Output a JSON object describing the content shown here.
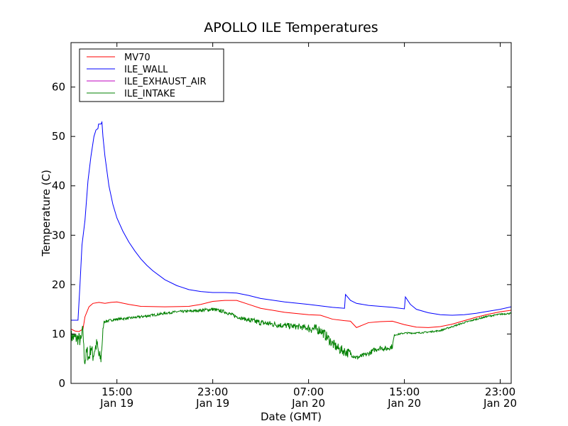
{
  "chart_data": {
    "type": "line",
    "title": "APOLLO ILE Temperatures",
    "xlabel": "Date (GMT)",
    "ylabel": "Temperature (C)",
    "xlim": [
      "2011-01-19 11:10",
      "2011-01-20 23:55"
    ],
    "ylim": [
      0,
      69
    ],
    "grid": false,
    "legend_position": "top-left",
    "x_ticks": [
      {
        "time": "2011-01-19 15:00",
        "label_time": "15:00",
        "label_date": "Jan 19"
      },
      {
        "time": "2011-01-19 23:00",
        "label_time": "23:00",
        "label_date": "Jan 19"
      },
      {
        "time": "2011-01-20 07:00",
        "label_time": "07:00",
        "label_date": "Jan 20"
      },
      {
        "time": "2011-01-20 15:00",
        "label_time": "15:00",
        "label_date": "Jan 20"
      },
      {
        "time": "2011-01-20 23:00",
        "label_time": "23:00",
        "label_date": "Jan 20"
      }
    ],
    "y_ticks": [
      0,
      10,
      20,
      30,
      40,
      50,
      60
    ],
    "series": [
      {
        "name": "MV70",
        "color": "#ff0000",
        "points": [
          [
            "2011-01-19 11:10",
            11.0
          ],
          [
            "2011-01-19 11:30",
            10.6
          ],
          [
            "2011-01-19 11:50",
            10.5
          ],
          [
            "2011-01-19 12:10",
            11.0
          ],
          [
            "2011-01-19 12:20",
            13.5
          ],
          [
            "2011-01-19 12:40",
            15.5
          ],
          [
            "2011-01-19 13:00",
            16.2
          ],
          [
            "2011-01-19 13:30",
            16.4
          ],
          [
            "2011-01-19 14:00",
            16.2
          ],
          [
            "2011-01-19 14:30",
            16.4
          ],
          [
            "2011-01-19 15:00",
            16.5
          ],
          [
            "2011-01-19 16:00",
            16.0
          ],
          [
            "2011-01-19 17:00",
            15.6
          ],
          [
            "2011-01-19 19:00",
            15.5
          ],
          [
            "2011-01-19 21:00",
            15.6
          ],
          [
            "2011-01-19 22:00",
            16.0
          ],
          [
            "2011-01-19 23:00",
            16.6
          ],
          [
            "2011-01-20 00:00",
            16.8
          ],
          [
            "2011-01-20 01:00",
            16.8
          ],
          [
            "2011-01-20 02:00",
            16.0
          ],
          [
            "2011-01-20 03:00",
            15.2
          ],
          [
            "2011-01-20 05:00",
            14.4
          ],
          [
            "2011-01-20 07:00",
            13.9
          ],
          [
            "2011-01-20 08:00",
            13.8
          ],
          [
            "2011-01-20 09:00",
            13.0
          ],
          [
            "2011-01-20 10:00",
            12.7
          ],
          [
            "2011-01-20 10:30",
            12.6
          ],
          [
            "2011-01-20 11:00",
            11.3
          ],
          [
            "2011-01-20 11:30",
            11.8
          ],
          [
            "2011-01-20 12:00",
            12.3
          ],
          [
            "2011-01-20 13:00",
            12.5
          ],
          [
            "2011-01-20 14:00",
            12.6
          ],
          [
            "2011-01-20 15:00",
            11.9
          ],
          [
            "2011-01-20 16:00",
            11.4
          ],
          [
            "2011-01-20 17:00",
            11.3
          ],
          [
            "2011-01-20 18:00",
            11.5
          ],
          [
            "2011-01-20 19:00",
            12.0
          ],
          [
            "2011-01-20 20:00",
            12.7
          ],
          [
            "2011-01-20 21:00",
            13.4
          ],
          [
            "2011-01-20 22:00",
            14.0
          ],
          [
            "2011-01-20 23:00",
            14.5
          ],
          [
            "2011-01-20 23:55",
            14.8
          ]
        ]
      },
      {
        "name": "ILE_WALL",
        "color": "#0000ff",
        "points": [
          [
            "2011-01-19 11:10",
            12.8
          ],
          [
            "2011-01-19 11:30",
            12.8
          ],
          [
            "2011-01-19 11:45",
            12.8
          ],
          [
            "2011-01-19 11:55",
            20.0
          ],
          [
            "2011-01-19 12:05",
            28.0
          ],
          [
            "2011-01-19 12:20",
            33.0
          ],
          [
            "2011-01-19 12:35",
            41.0
          ],
          [
            "2011-01-19 12:50",
            46.0
          ],
          [
            "2011-01-19 13:05",
            50.0
          ],
          [
            "2011-01-19 13:15",
            51.3
          ],
          [
            "2011-01-19 13:25",
            51.6
          ],
          [
            "2011-01-19 13:28",
            52.5
          ],
          [
            "2011-01-19 13:40",
            52.5
          ],
          [
            "2011-01-19 13:45",
            52.9
          ],
          [
            "2011-01-19 13:50",
            50.0
          ],
          [
            "2011-01-19 14:00",
            46.0
          ],
          [
            "2011-01-19 14:20",
            40.0
          ],
          [
            "2011-01-19 14:40",
            36.2
          ],
          [
            "2011-01-19 15:00",
            33.5
          ],
          [
            "2011-01-19 15:30",
            30.8
          ],
          [
            "2011-01-19 16:00",
            28.6
          ],
          [
            "2011-01-19 16:30",
            26.8
          ],
          [
            "2011-01-19 17:00",
            25.2
          ],
          [
            "2011-01-19 17:30",
            23.9
          ],
          [
            "2011-01-19 18:00",
            22.8
          ],
          [
            "2011-01-19 19:00",
            21.0
          ],
          [
            "2011-01-19 20:00",
            19.8
          ],
          [
            "2011-01-19 21:00",
            19.0
          ],
          [
            "2011-01-19 22:00",
            18.6
          ],
          [
            "2011-01-19 23:00",
            18.4
          ],
          [
            "2011-01-20 00:00",
            18.4
          ],
          [
            "2011-01-20 01:00",
            18.3
          ],
          [
            "2011-01-20 02:00",
            17.8
          ],
          [
            "2011-01-20 03:00",
            17.2
          ],
          [
            "2011-01-20 05:00",
            16.5
          ],
          [
            "2011-01-20 07:00",
            16.0
          ],
          [
            "2011-01-20 09:00",
            15.4
          ],
          [
            "2011-01-20 10:00",
            15.2
          ],
          [
            "2011-01-20 10:05",
            18.0
          ],
          [
            "2011-01-20 10:30",
            16.8
          ],
          [
            "2011-01-20 11:00",
            16.2
          ],
          [
            "2011-01-20 12:00",
            15.8
          ],
          [
            "2011-01-20 13:00",
            15.6
          ],
          [
            "2011-01-20 14:00",
            15.4
          ],
          [
            "2011-01-20 15:00",
            15.1
          ],
          [
            "2011-01-20 15:05",
            17.5
          ],
          [
            "2011-01-20 15:30",
            16.0
          ],
          [
            "2011-01-20 16:00",
            15.0
          ],
          [
            "2011-01-20 17:00",
            14.3
          ],
          [
            "2011-01-20 18:00",
            13.9
          ],
          [
            "2011-01-20 19:00",
            13.8
          ],
          [
            "2011-01-20 20:00",
            13.9
          ],
          [
            "2011-01-20 21:00",
            14.2
          ],
          [
            "2011-01-20 22:00",
            14.6
          ],
          [
            "2011-01-20 23:00",
            15.0
          ],
          [
            "2011-01-20 23:55",
            15.5
          ]
        ]
      },
      {
        "name": "ILE_EXHAUST_AIR",
        "color": "#bf00bf",
        "points": []
      },
      {
        "name": "ILE_INTAKE",
        "color": "#008000",
        "points": [
          [
            "2011-01-19 11:10",
            9.5
          ],
          [
            "2011-01-19 11:30",
            9.2
          ],
          [
            "2011-01-19 11:50",
            9.0
          ],
          [
            "2011-01-19 12:00",
            8.5
          ],
          [
            "2011-01-19 12:10",
            11.0
          ],
          [
            "2011-01-19 12:15",
            6.0
          ],
          [
            "2011-01-19 12:20",
            4.5
          ],
          [
            "2011-01-19 12:30",
            6.5
          ],
          [
            "2011-01-19 12:40",
            5.0
          ],
          [
            "2011-01-19 12:50",
            7.5
          ],
          [
            "2011-01-19 13:00",
            5.5
          ],
          [
            "2011-01-19 13:10",
            7.0
          ],
          [
            "2011-01-19 13:20",
            8.0
          ],
          [
            "2011-01-19 13:30",
            5.5
          ],
          [
            "2011-01-19 13:40",
            5.0
          ],
          [
            "2011-01-19 13:48",
            9.5
          ],
          [
            "2011-01-19 13:55",
            12.5
          ],
          [
            "2011-01-19 14:30",
            12.8
          ],
          [
            "2011-01-19 15:00",
            13.0
          ],
          [
            "2011-01-19 16:00",
            13.2
          ],
          [
            "2011-01-19 17:00",
            13.5
          ],
          [
            "2011-01-19 18:00",
            13.8
          ],
          [
            "2011-01-19 19:00",
            14.2
          ],
          [
            "2011-01-19 20:00",
            14.5
          ],
          [
            "2011-01-19 21:00",
            14.6
          ],
          [
            "2011-01-19 22:00",
            14.8
          ],
          [
            "2011-01-19 23:00",
            15.0
          ],
          [
            "2011-01-20 00:00",
            14.5
          ],
          [
            "2011-01-20 00:30",
            14.0
          ],
          [
            "2011-01-20 01:00",
            13.5
          ],
          [
            "2011-01-20 02:00",
            12.8
          ],
          [
            "2011-01-20 03:00",
            12.3
          ],
          [
            "2011-01-20 04:00",
            12.0
          ],
          [
            "2011-01-20 05:00",
            11.7
          ],
          [
            "2011-01-20 06:00",
            11.5
          ],
          [
            "2011-01-20 07:00",
            11.2
          ],
          [
            "2011-01-20 08:00",
            10.8
          ],
          [
            "2011-01-20 08:30",
            9.5
          ],
          [
            "2011-01-20 09:00",
            8.0
          ],
          [
            "2011-01-20 09:30",
            7.0
          ],
          [
            "2011-01-20 10:00",
            6.5
          ],
          [
            "2011-01-20 10:30",
            6.0
          ],
          [
            "2011-01-20 11:00",
            5.2
          ],
          [
            "2011-01-20 11:30",
            5.6
          ],
          [
            "2011-01-20 12:00",
            6.0
          ],
          [
            "2011-01-20 12:30",
            6.8
          ],
          [
            "2011-01-20 13:00",
            7.2
          ],
          [
            "2011-01-20 13:30",
            7.0
          ],
          [
            "2011-01-20 14:00",
            7.5
          ],
          [
            "2011-01-20 14:10",
            9.8
          ],
          [
            "2011-01-20 15:00",
            10.2
          ],
          [
            "2011-01-20 16:00",
            10.2
          ],
          [
            "2011-01-20 17:00",
            10.4
          ],
          [
            "2011-01-20 18:00",
            10.7
          ],
          [
            "2011-01-20 19:00",
            11.5
          ],
          [
            "2011-01-20 20:00",
            12.3
          ],
          [
            "2011-01-20 21:00",
            13.0
          ],
          [
            "2011-01-20 22:00",
            13.6
          ],
          [
            "2011-01-20 23:00",
            14.0
          ],
          [
            "2011-01-20 23:55",
            14.2
          ]
        ],
        "noise_segments": [
          {
            "from": "2011-01-19 11:10",
            "to": "2011-01-19 13:50",
            "amplitude": 1.4
          },
          {
            "from": "2011-01-19 13:55",
            "to": "2011-01-19 22:00",
            "amplitude": 0.25
          },
          {
            "from": "2011-01-19 22:00",
            "to": "2011-01-20 02:00",
            "amplitude": 0.35
          },
          {
            "from": "2011-01-20 02:00",
            "to": "2011-01-20 07:00",
            "amplitude": 0.6
          },
          {
            "from": "2011-01-20 07:00",
            "to": "2011-01-20 10:30",
            "amplitude": 1.0
          },
          {
            "from": "2011-01-20 10:30",
            "to": "2011-01-20 14:10",
            "amplitude": 0.5
          },
          {
            "from": "2011-01-20 14:10",
            "to": "2011-01-20 23:55",
            "amplitude": 0.15
          }
        ]
      }
    ]
  }
}
